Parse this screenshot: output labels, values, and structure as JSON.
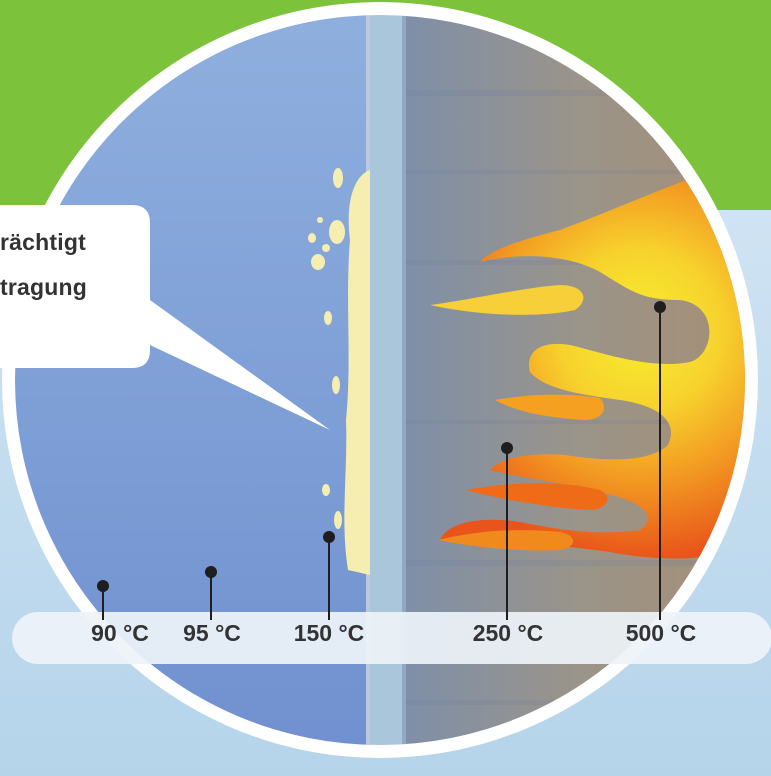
{
  "colors": {
    "background_green": "#7cc23a",
    "cold_side": "#7b9ad4",
    "wall": "#a8c6dc",
    "hot_side": "#8f8f8a",
    "flame_outer": "#ee5a17",
    "flame_mid": "#f5a021",
    "flame_inner": "#f3e33a",
    "blister": "#f6eeb0",
    "label_band": "#eaf1f6"
  },
  "callout": {
    "line1": "rächtigt",
    "line2": "tragung"
  },
  "temperatures": [
    {
      "label": "90 °C"
    },
    {
      "label": "95 °C"
    },
    {
      "label": "150 °C"
    },
    {
      "label": "250 °C"
    },
    {
      "label": "500 °C"
    }
  ]
}
